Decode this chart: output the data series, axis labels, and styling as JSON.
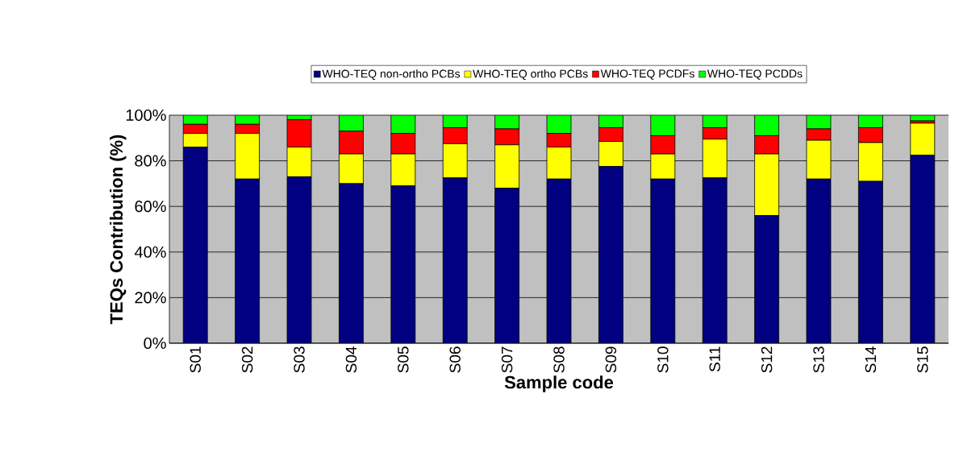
{
  "chart_data": {
    "type": "bar",
    "stacked": true,
    "xlabel": "Sample code",
    "ylabel": "TEQs Contribution (%)",
    "categories": [
      "S01",
      "S02",
      "S03",
      "S04",
      "S05",
      "S06",
      "S07",
      "S08",
      "S09",
      "S10",
      "S11",
      "S12",
      "S13",
      "S14",
      "S15"
    ],
    "series": [
      {
        "name": "WHO-TEQ non-ortho PCBs",
        "color": "#000080",
        "values": [
          86,
          72,
          73,
          70,
          69,
          72.5,
          68,
          72,
          77.5,
          72,
          72.5,
          56,
          72,
          71,
          82.5
        ]
      },
      {
        "name": "WHO-TEQ ortho PCBs",
        "color": "#ffff00",
        "values": [
          6,
          20,
          13,
          13,
          14,
          15,
          19,
          14,
          11,
          11,
          17,
          27,
          17,
          17,
          14
        ]
      },
      {
        "name": "WHO-TEQ PCDFs",
        "color": "#ff0000",
        "values": [
          4,
          4,
          12,
          10,
          9,
          7,
          7,
          6,
          6,
          8,
          5,
          8,
          5,
          6.5,
          1
        ]
      },
      {
        "name": "WHO-TEQ PCDDs",
        "color": "#00ff00",
        "values": [
          4,
          4,
          2,
          7,
          8,
          5.5,
          6,
          8,
          5.5,
          9,
          5.5,
          9,
          6,
          5.5,
          2.5
        ]
      }
    ],
    "ylim": [
      0,
      100
    ],
    "yticks": [
      {
        "value": 0,
        "label": "0%"
      },
      {
        "value": 20,
        "label": "20%"
      },
      {
        "value": 40,
        "label": "40%"
      },
      {
        "value": 60,
        "label": "60%"
      },
      {
        "value": 80,
        "label": "80%"
      },
      {
        "value": 100,
        "label": "100%"
      }
    ],
    "grid": "y",
    "legend": "top"
  }
}
